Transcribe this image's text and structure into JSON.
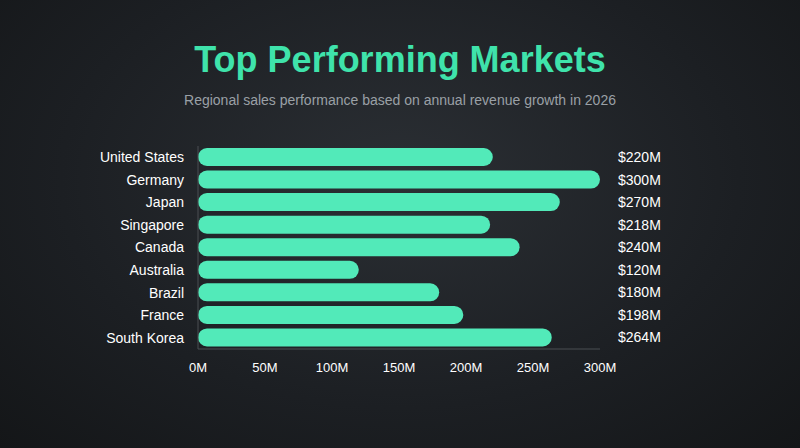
{
  "chart_data": {
    "type": "bar",
    "orientation": "horizontal",
    "title": "Top Performing Markets",
    "subtitle": "Regional sales performance based on annual revenue growth in 2026",
    "categories": [
      "United States",
      "Germany",
      "Japan",
      "Singapore",
      "Canada",
      "Australia",
      "Brazil",
      "France",
      "South Korea"
    ],
    "values": [
      220,
      300,
      270,
      218,
      240,
      120,
      180,
      198,
      264
    ],
    "value_labels": [
      "$220M",
      "$300M",
      "$270M",
      "$218M",
      "$240M",
      "$120M",
      "$180M",
      "$198M",
      "$264M"
    ],
    "xlim": [
      0,
      300
    ],
    "xticks": [
      {
        "value": 0,
        "label": "0M"
      },
      {
        "value": 50,
        "label": "50M"
      },
      {
        "value": 100,
        "label": "100M"
      },
      {
        "value": 150,
        "label": "150M"
      },
      {
        "value": 200,
        "label": "200M"
      },
      {
        "value": 250,
        "label": "250M"
      },
      {
        "value": 300,
        "label": "300M"
      }
    ],
    "color": "#52eab9",
    "data_labels": true,
    "grid": false
  }
}
